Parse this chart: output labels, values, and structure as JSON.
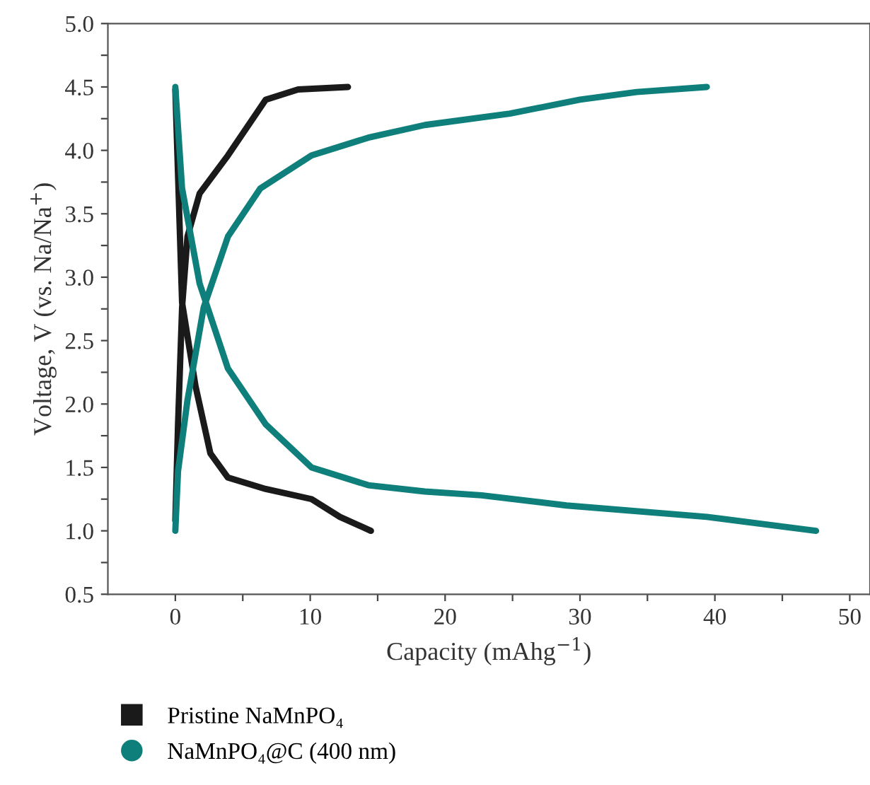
{
  "chart_data": {
    "type": "line",
    "xlabel": "Capacity (mAhg$^{−1}$)",
    "ylabel": "Voltage, V (vs. Na/Na$^{+}$)",
    "xlim": [
      -5,
      51.5
    ],
    "ylim": [
      0.5,
      5.0
    ],
    "xticks": [
      0,
      {
        "value": 5,
        "label": null
      },
      10,
      {
        "value": 15,
        "label": null
      },
      20,
      {
        "value": 25,
        "label": null
      },
      30,
      {
        "value": 35,
        "label": null
      },
      40,
      {
        "value": 45,
        "label": null
      },
      50
    ],
    "yticks": [
      0.5,
      {
        "value": 0.75,
        "label": null
      },
      {
        "value": 1,
        "label": "1.0"
      },
      {
        "value": 1.25,
        "label": null
      },
      1.5,
      {
        "value": 1.75,
        "label": null
      },
      {
        "value": 2,
        "label": "2.0"
      },
      {
        "value": 2.25,
        "label": null
      },
      2.5,
      {
        "value": 2.75,
        "label": null
      },
      {
        "value": 3,
        "label": "3.0"
      },
      {
        "value": 3.25,
        "label": null
      },
      3.5,
      {
        "value": 3.75,
        "label": null
      },
      {
        "value": 4,
        "label": "4.0"
      },
      {
        "value": 4.25,
        "label": null
      },
      4.5,
      {
        "value": 4.75,
        "label": null
      },
      {
        "value": 5,
        "label": "5.0"
      }
    ],
    "legend": "bottom",
    "grid": false,
    "marker": "none",
    "line_style": "solid",
    "series": [
      {
        "name": "Pristine NaMnPO₄",
        "color": "#1a1a1a",
        "x": [
          0,
          0.2,
          0.5,
          0.9,
          1.8,
          3.9,
          6.7,
          9.1,
          12.8,
          null,
          0,
          0.5,
          1.5,
          2.6,
          3.9,
          6.7,
          10.1,
          12.2,
          14.5
        ],
        "values": [
          1.08,
          1.84,
          2.76,
          3.32,
          3.66,
          3.96,
          4.4,
          4.48,
          4.5,
          null,
          4.48,
          2.8,
          2.14,
          1.61,
          1.42,
          1.33,
          1.25,
          1.11,
          1.0
        ]
      },
      {
        "name": "NaMnPO₄@C (400 nm)",
        "color": "#0e7f7a",
        "x": [
          0,
          0.2,
          0.9,
          2.1,
          3.9,
          6.3,
          10.1,
          14.3,
          18.5,
          24.8,
          30,
          34.2,
          39.4,
          null,
          0,
          0.5,
          1.8,
          3.9,
          6.7,
          10.1,
          14.3,
          18.5,
          22.7,
          29,
          39.4,
          47.5
        ],
        "values": [
          1.0,
          1.47,
          2.03,
          2.76,
          3.32,
          3.7,
          3.96,
          4.1,
          4.2,
          4.29,
          4.4,
          4.46,
          4.5,
          null,
          4.5,
          3.7,
          2.95,
          2.28,
          1.84,
          1.5,
          1.36,
          1.31,
          1.28,
          1.2,
          1.11,
          1.0
        ]
      }
    ]
  }
}
